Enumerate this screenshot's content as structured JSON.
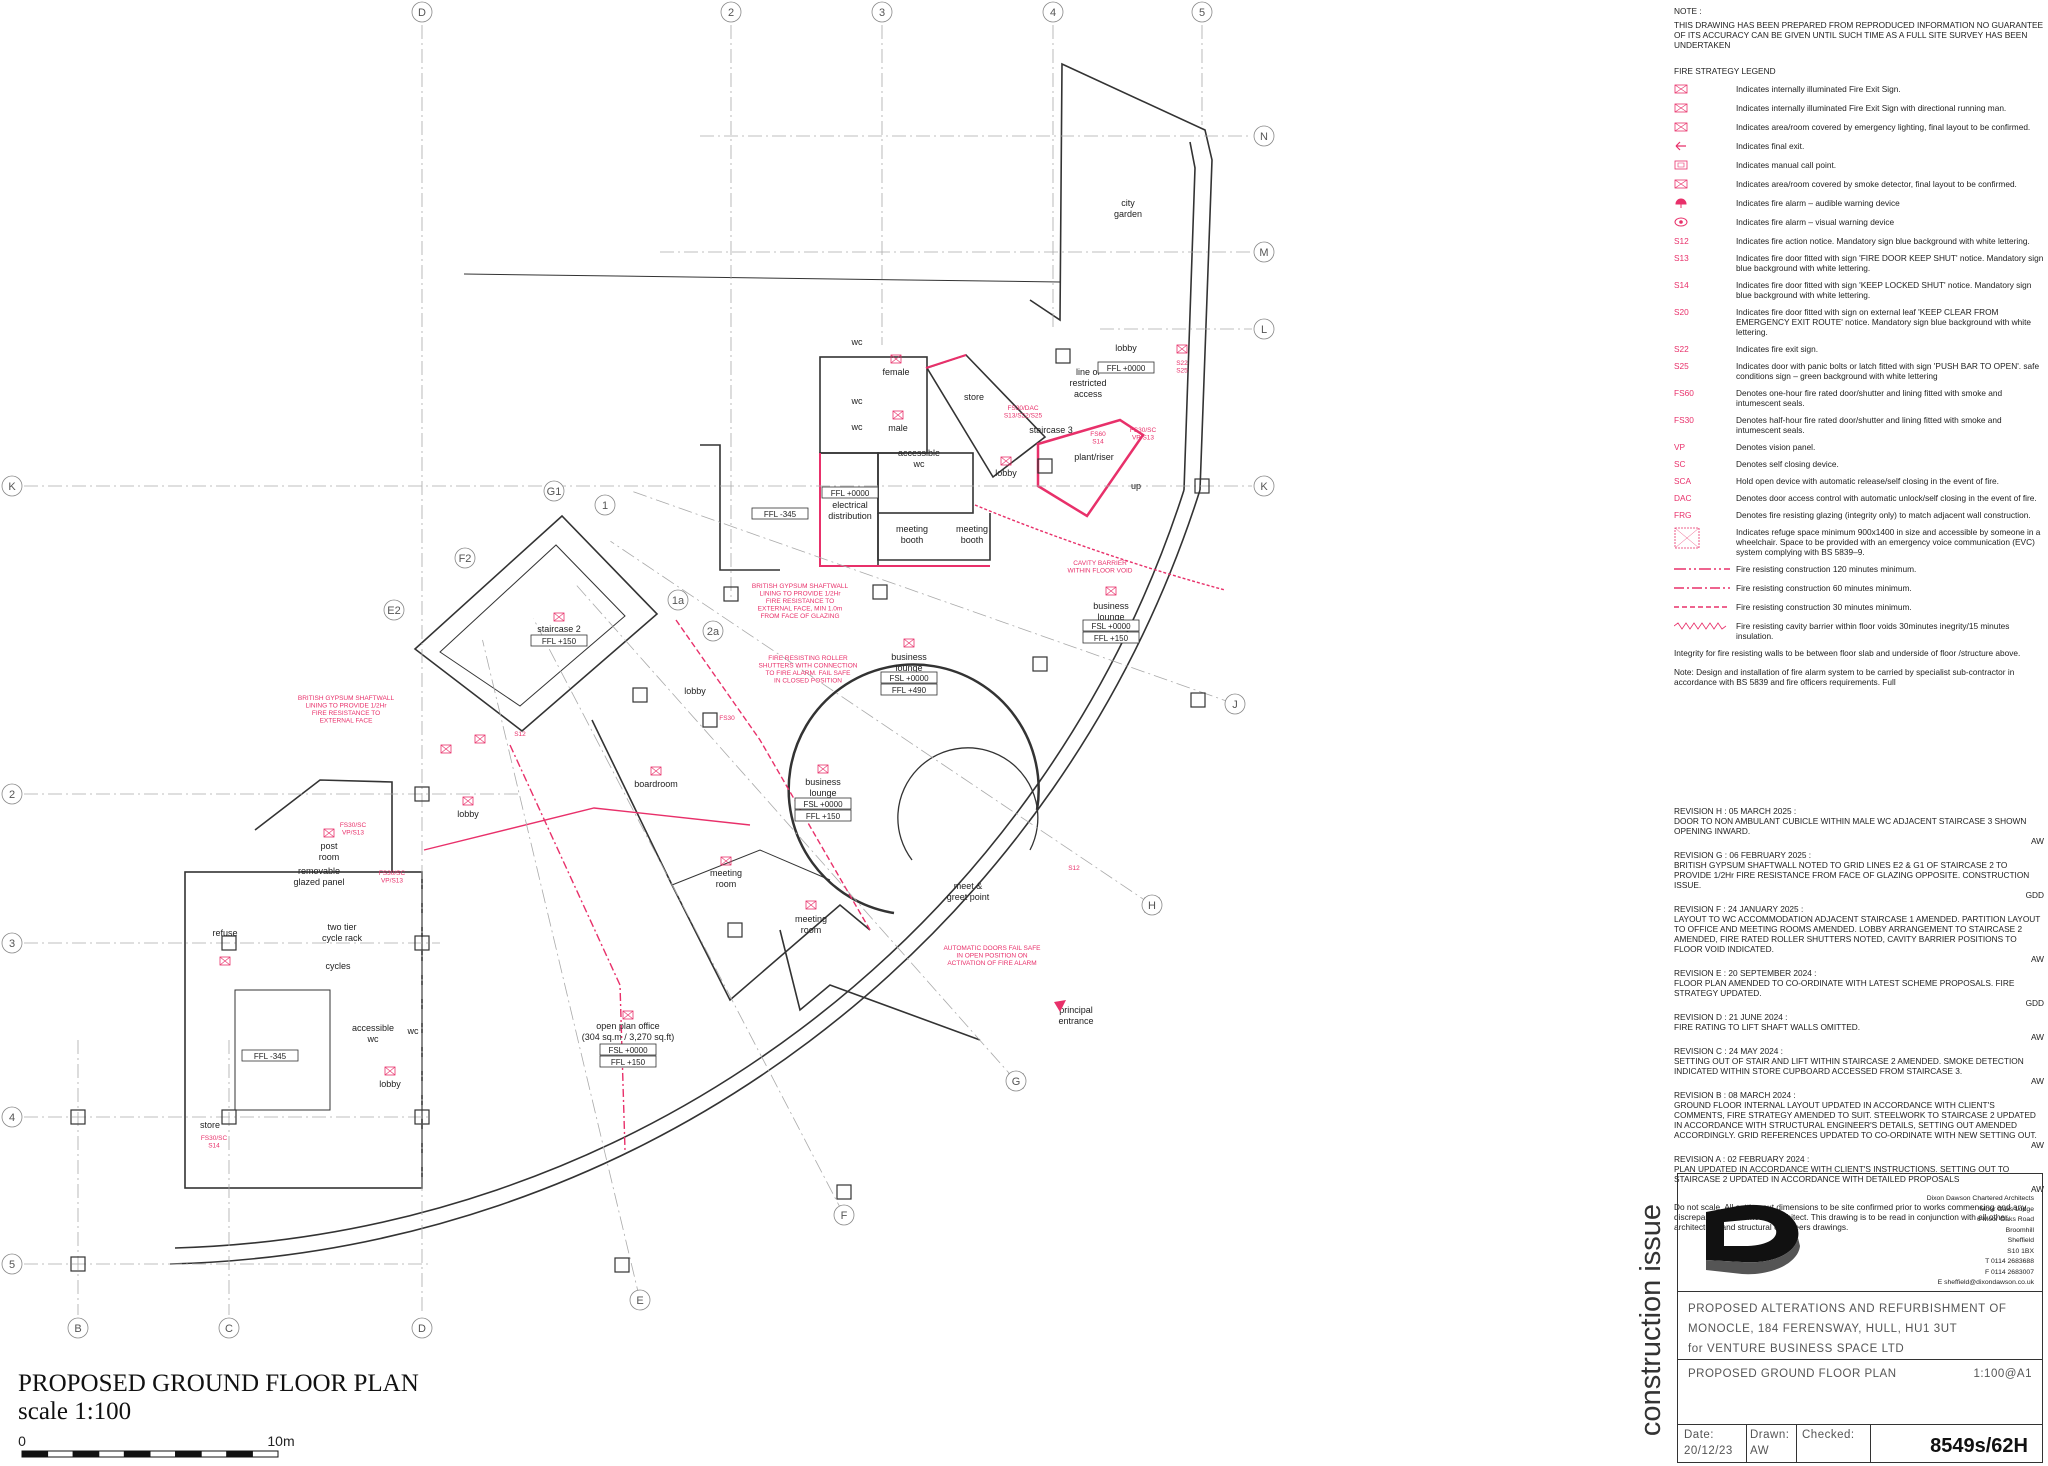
{
  "drawing": {
    "title": "PROPOSED GROUND FLOOR PLAN",
    "scale": "scale 1:100",
    "scale_bar": [
      "0",
      "10m"
    ],
    "grid_labels": [
      "D",
      "2",
      "3",
      "4",
      "5",
      "N",
      "M",
      "L",
      "K",
      "K",
      "2",
      "3",
      "4",
      "5",
      "B",
      "C",
      "D",
      "G1",
      "1",
      "F2",
      "E2",
      "1a",
      "2a",
      "J",
      "H",
      "G",
      "F",
      "E"
    ],
    "rooms": [
      [
        "city",
        "garden"
      ],
      [
        "lobby"
      ],
      [
        "line of",
        "restricted",
        "access"
      ],
      [
        "store"
      ],
      [
        "staircase 3"
      ],
      [
        "plant/riser"
      ],
      [
        "lobby"
      ],
      [
        "up"
      ],
      [
        "female"
      ],
      [
        "male"
      ],
      [
        "wc"
      ],
      [
        "wc"
      ],
      [
        "wc"
      ],
      [
        "accessible",
        "wc"
      ],
      [
        "electrical",
        "distribution"
      ],
      [
        "meeting",
        "booth"
      ],
      [
        "meeting",
        "booth"
      ],
      [
        "staircase 2"
      ],
      [
        "business",
        "lounge"
      ],
      [
        "business",
        "lounge"
      ],
      [
        "lobby"
      ],
      [
        "boardroom"
      ],
      [
        "business",
        "lounge"
      ],
      [
        "lobby"
      ],
      [
        "post",
        "room"
      ],
      [
        "meeting",
        "room"
      ],
      [
        "meeting",
        "room"
      ],
      [
        "meet &",
        "greet point"
      ],
      [
        "principal",
        "entrance"
      ],
      [
        "refuse"
      ],
      [
        "two tier",
        "cycle rack"
      ],
      [
        "cycles"
      ],
      [
        "accessible",
        "wc"
      ],
      [
        "wc"
      ],
      [
        "lobby"
      ],
      [
        "store"
      ],
      [
        "open plan office",
        "(304 sq.m / 3,270 sq.ft)"
      ],
      [
        "removable",
        "glazed panel"
      ]
    ],
    "levels": [
      [
        "FFL -345"
      ],
      [
        "FSL +0000",
        "FFL +150"
      ],
      [
        "FFL +150"
      ],
      [
        "FSL +0000",
        "FFL +490"
      ],
      [
        "FSL +0000",
        "FFL +150"
      ],
      [
        "FSL +0000",
        "FFL +150"
      ],
      [
        "FFL -345"
      ],
      [
        "FFL +0000"
      ],
      [
        "FFL +0000"
      ]
    ],
    "annotations": [
      [
        "BRITISH GYPSUM SHAFTWALL",
        "LINING TO PROVIDE 1/2Hr",
        "FIRE RESISTANCE TO",
        "EXTERNAL FACE"
      ],
      [
        "BRITISH GYPSUM SHAFTWALL",
        "LINING TO PROVIDE 1/2Hr",
        "FIRE RESISTANCE TO",
        "EXTERNAL FACE, MIN 1.0m",
        "FROM FACE OF GLAZING"
      ],
      [
        "FIRE RESISTING ROLLER",
        "SHUTTERS WITH CONNECTION",
        "TO FIRE ALARM. FAIL SAFE",
        "IN CLOSED POSITION"
      ],
      [
        "AUTOMATIC DOORS FAIL SAFE",
        "IN OPEN POSITION ON",
        "ACTIVATION OF FIRE ALARM"
      ],
      [
        "CAVITY BARRIER",
        "WITHIN FLOOR VOID"
      ]
    ],
    "tags": [
      [
        "S22",
        "S25"
      ],
      [
        "FS30/SC",
        "VP/S13"
      ],
      [
        "FS30/DAC",
        "S13/S22/S25"
      ],
      [
        "FS60",
        "S14"
      ],
      [
        "FS30/SC",
        "VP/S13"
      ],
      [
        "FS30/SC",
        "VP/S13"
      ],
      [
        "FS30/SC",
        "S14"
      ],
      [
        "S12"
      ],
      [
        "FS30"
      ],
      [
        "S12"
      ]
    ]
  },
  "notes": {
    "heading": "NOTE :",
    "text": "THIS DRAWING HAS BEEN PREPARED FROM REPRODUCED INFORMATION NO GUARANTEE OF ITS ACCURACY CAN BE GIVEN UNTIL SUCH TIME AS A FULL SITE SURVEY HAS BEEN UNDERTAKEN"
  },
  "legend": {
    "heading": "FIRE STRATEGY LEGEND",
    "items": [
      {
        "text": "Indicates internally illuminated Fire Exit Sign."
      },
      {
        "text": "Indicates internally illuminated Fire Exit Sign with directional running man."
      },
      {
        "text": "Indicates area/room covered by emergency lighting, final layout to be confirmed."
      },
      {
        "text": "Indicates final exit."
      },
      {
        "text": "Indicates manual call point."
      },
      {
        "text": "Indicates area/room covered by smoke detector, final layout to be confirmed."
      },
      {
        "text": "Indicates fire alarm – audible warning device"
      },
      {
        "text": "Indicates fire alarm – visual warning device"
      },
      {
        "code": "S12",
        "text": "Indicates fire action notice. Mandatory sign blue background with white lettering."
      },
      {
        "code": "S13",
        "text": "Indicates fire door fitted with sign 'FIRE DOOR KEEP SHUT' notice. Mandatory sign blue background with white lettering."
      },
      {
        "code": "S14",
        "text": "Indicates fire door fitted with sign 'KEEP LOCKED SHUT' notice. Mandatory sign blue background with white lettering."
      },
      {
        "code": "S20",
        "text": "Indicates fire door fitted with sign on external leaf 'KEEP CLEAR FROM EMERGENCY EXIT ROUTE' notice. Mandatory sign blue background with white lettering."
      },
      {
        "code": "S22",
        "text": "Indicates fire exit sign."
      },
      {
        "code": "S25",
        "text": "Indicates door with panic bolts or latch fitted with sign 'PUSH BAR TO OPEN'. safe conditions sign – green background with white lettering"
      },
      {
        "code": "FS60",
        "text": "Denotes one-hour fire rated door/shutter and lining fitted with smoke and intumescent seals."
      },
      {
        "code": "FS30",
        "text": "Denotes half-hour fire rated door/shutter and lining fitted with smoke and intumescent seals."
      },
      {
        "code": "VP",
        "text": "Denotes vision panel."
      },
      {
        "code": "SC",
        "text": "Denotes self closing device."
      },
      {
        "code": "SCA",
        "text": "Hold open device with automatic release/self closing in the event of fire."
      },
      {
        "code": "DAC",
        "text": "Denotes door access control with automatic unlock/self closing in the event of fire."
      },
      {
        "code": "FRG",
        "text": "Denotes fire resisting glazing (integrity only) to match adjacent wall construction."
      },
      {
        "text": "Indicates refuge space minimum 900x1400 in size and accessible by someone in a wheelchair. Space to be provided with an emergency voice communication (EVC) system complying with BS 5839–9."
      },
      {
        "text": "Fire resisting construction 120 minutes minimum."
      },
      {
        "text": "Fire resisting construction 60 minutes minimum."
      },
      {
        "text": "Fire resisting construction 30 minutes minimum."
      },
      {
        "text": "Fire resisting cavity barrier within floor voids 30minutes inegrity/15 minutes insulation."
      }
    ],
    "footer": [
      "Integrity for fire resisting walls to be between floor slab and underside of floor /structure above.",
      "Note: Design and installation of fire alarm system to be carried by specialist sub-contractor in accordance with BS 5839 and fire officers requirements. Full"
    ]
  },
  "revisions": [
    {
      "heading": "REVISION H : 05 MARCH 2025 :",
      "text": "DOOR TO NON AMBULANT CUBICLE WITHIN MALE WC ADJACENT STAIRCASE 3 SHOWN OPENING INWARD.",
      "by": "AW"
    },
    {
      "heading": "REVISION G : 06 FEBRUARY 2025 :",
      "text": "BRITISH GYPSUM SHAFTWALL NOTED TO GRID LINES E2 & G1 OF STAIRCASE 2 TO PROVIDE 1/2Hr FIRE RESISTANCE FROM FACE OF GLAZING OPPOSITE. CONSTRUCTION ISSUE.",
      "by": "GDD"
    },
    {
      "heading": "REVISION F : 24 JANUARY 2025 :",
      "text": "LAYOUT TO WC ACCOMMODATION ADJACENT STAIRCASE 1 AMENDED. PARTITION LAYOUT TO OFFICE AND MEETING ROOMS AMENDED. LOBBY ARRANGEMENT TO STAIRCASE 2 AMENDED, FIRE RATED ROLLER SHUTTERS NOTED, CAVITY BARRIER POSITIONS TO FLOOR VOID INDICATED.",
      "by": "AW"
    },
    {
      "heading": "REVISION E : 20 SEPTEMBER 2024 :",
      "text": "FLOOR PLAN AMENDED TO CO-ORDINATE WITH LATEST SCHEME PROPOSALS. FIRE STRATEGY UPDATED.",
      "by": "GDD"
    },
    {
      "heading": "REVISION D : 21 JUNE 2024 :",
      "text": "FIRE RATING TO LIFT SHAFT WALLS OMITTED.",
      "by": "AW"
    },
    {
      "heading": "REVISION C : 24 MAY 2024 :",
      "text": "SETTING OUT OF STAIR AND LIFT WITHIN STAIRCASE 2 AMENDED. SMOKE DETECTION INDICATED WITHIN STORE CUPBOARD ACCESSED FROM STAIRCASE 3.",
      "by": "AW"
    },
    {
      "heading": "REVISION B : 08 MARCH 2024 :",
      "text": "GROUND FLOOR INTERNAL LAYOUT UPDATED IN ACCORDANCE WITH CLIENT'S COMMENTS, FIRE STRATEGY AMENDED TO SUIT. STEELWORK TO STAIRCASE 2 UPDATED IN ACCORDANCE WITH STRUCTURAL ENGINEER'S DETAILS, SETTING OUT AMENDED ACCORDINGLY. GRID REFERENCES UPDATED TO CO-ORDINATE WITH NEW SETTING OUT.",
      "by": "AW"
    },
    {
      "heading": "REVISION A : 02 FEBRUARY 2024 :",
      "text": "PLAN UPDATED IN ACCORDANCE WITH CLIENT'S INSTRUCTIONS. SETTING OUT TO STAIRCASE 2 UPDATED IN ACCORDANCE WITH DETAILED PROPOSALS",
      "by": "AW"
    }
  ],
  "disclaimer": "Do not scale. All setting out dimensions to be site confirmed prior to works commencing and any discrepancies confirmed to architect. This drawing is to be read in conjunction with all other architectural and structural engineers drawings.",
  "title_block": {
    "status": "construction issue",
    "address": [
      "Dixon Dawson Chartered Architects",
      "Moor Oaks Lodge",
      "6 Moor Oaks Road",
      "Broomhill",
      "Sheffield",
      "S10 1BX",
      "T 0114 2683688",
      "F 0114 2683007",
      "E sheffield@dixondawson.co.uk"
    ],
    "project": [
      "PROPOSED ALTERATIONS AND REFURBISHMENT OF",
      "MONOCLE, 184 FERENSWAY, HULL, HU1 3UT",
      "for VENTURE BUSINESS SPACE LTD"
    ],
    "drawing_title": "PROPOSED GROUND FLOOR PLAN",
    "drawing_scale": "1:100@A1",
    "date_label": "Date:",
    "date": "20/12/23",
    "drawn_label": "Drawn:",
    "drawn": "AW",
    "checked_label": "Checked:",
    "number": "8549s/62H"
  }
}
